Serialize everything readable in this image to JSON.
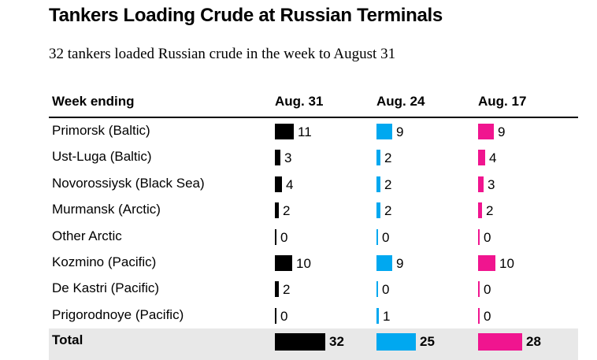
{
  "title": "Tankers Loading Crude at Russian Terminals",
  "subtitle": "32 tankers loaded Russian crude in the week to August 31",
  "colors": {
    "aug31": "#000000",
    "aug24": "#00a8f0",
    "aug17": "#f0158f",
    "total_bg": "#e8e8e8"
  },
  "chart_data": {
    "type": "table",
    "row_header": "Week ending",
    "columns": [
      "Aug. 31",
      "Aug. 24",
      "Aug. 17"
    ],
    "rows": [
      {
        "label": "Primorsk (Baltic)",
        "values": [
          11,
          9,
          9
        ]
      },
      {
        "label": "Ust-Luga (Baltic)",
        "values": [
          3,
          2,
          4
        ]
      },
      {
        "label": "Novorossiysk (Black Sea)",
        "values": [
          4,
          2,
          3
        ]
      },
      {
        "label": "Murmansk (Arctic)",
        "values": [
          2,
          2,
          2
        ]
      },
      {
        "label": "Other Arctic",
        "values": [
          0,
          0,
          0
        ]
      },
      {
        "label": "Kozmino (Pacific)",
        "values": [
          10,
          9,
          10
        ]
      },
      {
        "label": "De Kastri (Pacific)",
        "values": [
          2,
          0,
          0
        ]
      },
      {
        "label": "Prigorodnoye (Pacific)",
        "values": [
          0,
          1,
          0
        ]
      }
    ],
    "total": {
      "label": "Total",
      "values": [
        32,
        25,
        28
      ]
    }
  }
}
